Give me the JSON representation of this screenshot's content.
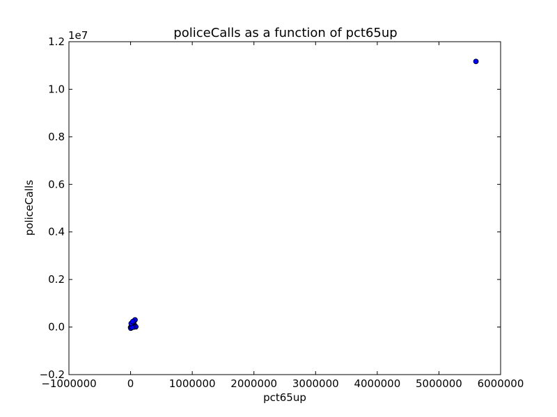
{
  "chart_data": {
    "type": "scatter",
    "title": "policeCalls as a function of pct65up",
    "xlabel": "pct65up",
    "ylabel": "policeCalls",
    "y_offset_label": "1e7",
    "xlim": [
      -1000000,
      6000000
    ],
    "ylim": [
      -2000000,
      12000000
    ],
    "x_ticks": [
      -1000000,
      0,
      1000000,
      2000000,
      3000000,
      4000000,
      5000000,
      6000000
    ],
    "x_tick_labels": [
      "−1000000",
      "0",
      "1000000",
      "2000000",
      "3000000",
      "4000000",
      "5000000",
      "6000000"
    ],
    "y_ticks": [
      -2000000,
      0,
      2000000,
      4000000,
      6000000,
      8000000,
      10000000,
      12000000
    ],
    "y_tick_labels": [
      "−0.2",
      "0.0",
      "0.2",
      "0.4",
      "0.6",
      "0.8",
      "1.0",
      "1.2"
    ],
    "grid": false,
    "marker_color": "#0000ff",
    "marker_edge_color": "#000000",
    "points": [
      {
        "x": 5600000,
        "y": 11170000
      },
      {
        "x": 0,
        "y": -20000
      },
      {
        "x": 3000,
        "y": -50000
      },
      {
        "x": 8000,
        "y": 10000
      },
      {
        "x": 15000,
        "y": 40000
      },
      {
        "x": 22000,
        "y": 80000
      },
      {
        "x": 30000,
        "y": 120000
      },
      {
        "x": 38000,
        "y": 170000
      },
      {
        "x": 45000,
        "y": 210000
      },
      {
        "x": 55000,
        "y": 250000
      },
      {
        "x": 65000,
        "y": 280000
      },
      {
        "x": 72000,
        "y": 300000
      },
      {
        "x": 40000,
        "y": 60000
      },
      {
        "x": 60000,
        "y": 90000
      },
      {
        "x": 75000,
        "y": 30000
      },
      {
        "x": 85000,
        "y": 10000
      },
      {
        "x": 50000,
        "y": 0
      },
      {
        "x": 25000,
        "y": -10000
      },
      {
        "x": 10000,
        "y": 150000
      },
      {
        "x": 35000,
        "y": 230000
      }
    ]
  }
}
